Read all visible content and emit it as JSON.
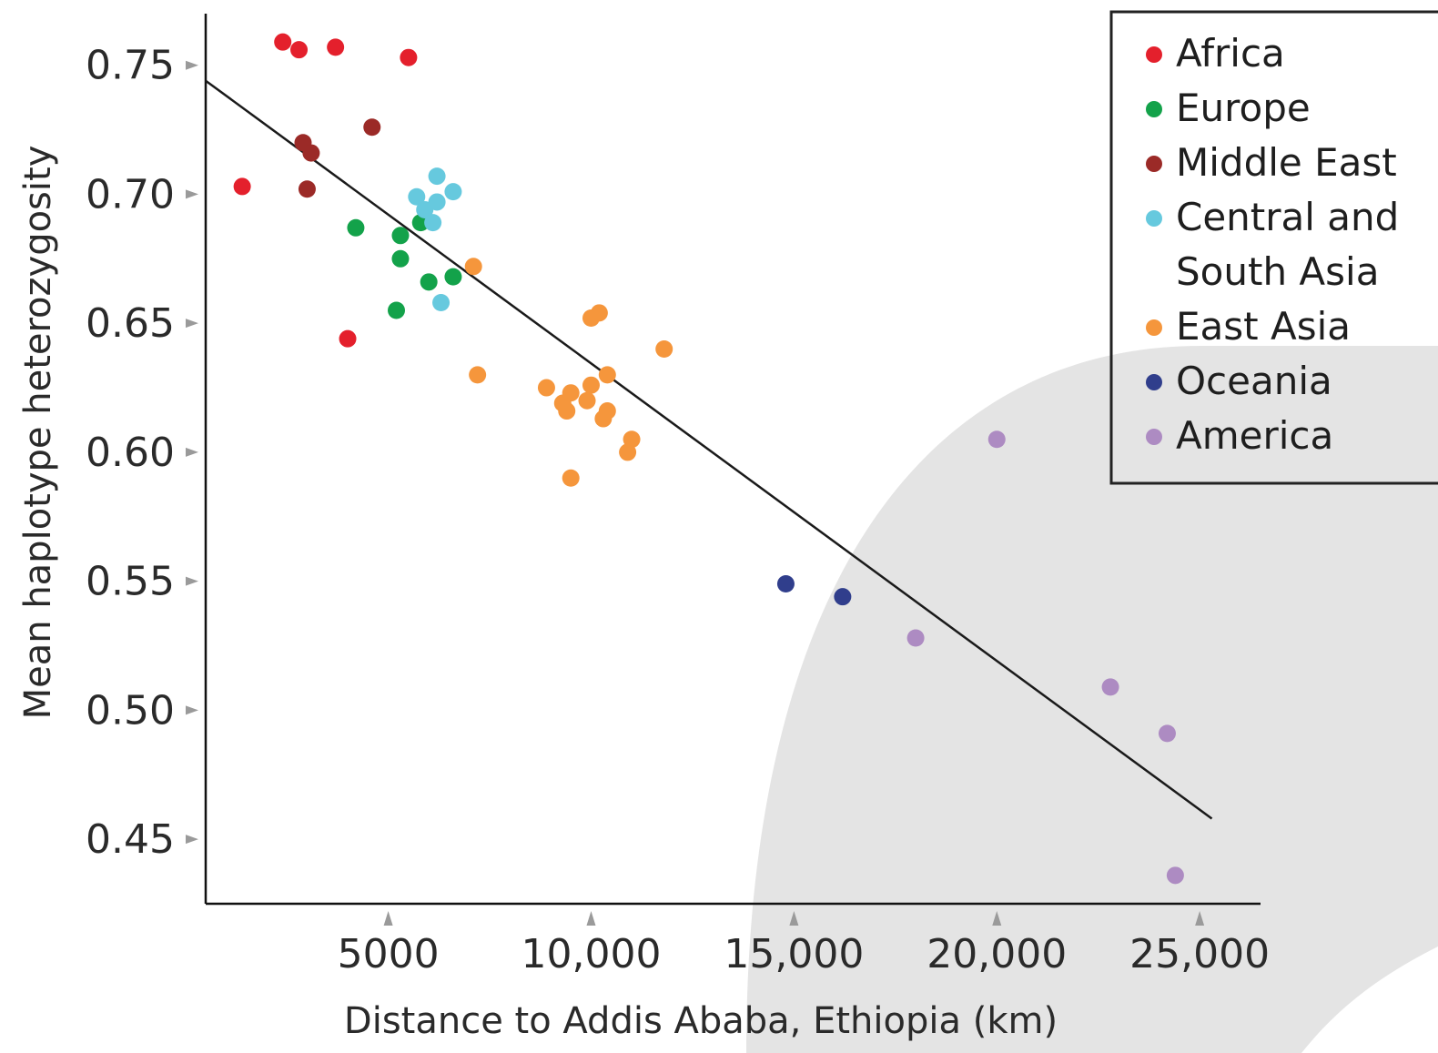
{
  "chart_data": {
    "type": "scatter",
    "title": "",
    "xlabel": "Distance to Addis Ababa, Ethiopia (km)",
    "ylabel": "Mean haplotype heterozygosity",
    "xlim": [
      500,
      26500
    ],
    "ylim": [
      0.425,
      0.77
    ],
    "xticks": [
      5000,
      10000,
      15000,
      20000,
      25000
    ],
    "xtick_labels": [
      "5000",
      "10,000",
      "15,000",
      "20,000",
      "25,000"
    ],
    "yticks": [
      0.75,
      0.7,
      0.65,
      0.6,
      0.55,
      0.5,
      0.45
    ],
    "ytick_labels": [
      "0.75",
      "0.70",
      "0.65",
      "0.60",
      "0.55",
      "0.50",
      "0.45"
    ],
    "grid": false,
    "legend_position": "top-right",
    "trendline": {
      "x": [
        500,
        25300
      ],
      "y": [
        0.744,
        0.458
      ]
    },
    "series": [
      {
        "name": "Africa",
        "color": "#e4202c",
        "points": [
          [
            1400,
            0.703
          ],
          [
            2400,
            0.759
          ],
          [
            2800,
            0.756
          ],
          [
            3700,
            0.757
          ],
          [
            4000,
            0.644
          ],
          [
            5500,
            0.753
          ]
        ]
      },
      {
        "name": "Europe",
        "color": "#13a24a",
        "points": [
          [
            4200,
            0.687
          ],
          [
            5200,
            0.655
          ],
          [
            5300,
            0.684
          ],
          [
            5300,
            0.675
          ],
          [
            5800,
            0.689
          ],
          [
            6000,
            0.666
          ],
          [
            6600,
            0.668
          ]
        ]
      },
      {
        "name": "Middle East",
        "color": "#9b2a27",
        "points": [
          [
            2900,
            0.72
          ],
          [
            3100,
            0.716
          ],
          [
            3000,
            0.702
          ],
          [
            4600,
            0.726
          ]
        ]
      },
      {
        "name": "Central and\nSouth Asia",
        "color": "#66c9de",
        "points": [
          [
            5700,
            0.699
          ],
          [
            5900,
            0.694
          ],
          [
            6100,
            0.689
          ],
          [
            6200,
            0.707
          ],
          [
            6200,
            0.697
          ],
          [
            6300,
            0.658
          ],
          [
            6600,
            0.701
          ]
        ]
      },
      {
        "name": "East Asia",
        "color": "#f5963c",
        "points": [
          [
            7100,
            0.672
          ],
          [
            7200,
            0.63
          ],
          [
            8900,
            0.625
          ],
          [
            9300,
            0.619
          ],
          [
            9400,
            0.616
          ],
          [
            9500,
            0.623
          ],
          [
            9500,
            0.59
          ],
          [
            9900,
            0.62
          ],
          [
            10000,
            0.626
          ],
          [
            10000,
            0.652
          ],
          [
            10200,
            0.654
          ],
          [
            10300,
            0.613
          ],
          [
            10400,
            0.616
          ],
          [
            10400,
            0.63
          ],
          [
            10900,
            0.6
          ],
          [
            11000,
            0.605
          ],
          [
            11800,
            0.64
          ]
        ]
      },
      {
        "name": "Oceania",
        "color": "#303e8c",
        "points": [
          [
            14800,
            0.549
          ],
          [
            16200,
            0.544
          ]
        ]
      },
      {
        "name": "America",
        "color": "#ad8bc2",
        "points": [
          [
            18000,
            0.528
          ],
          [
            20000,
            0.605
          ],
          [
            22800,
            0.509
          ],
          [
            24200,
            0.491
          ],
          [
            24400,
            0.436
          ]
        ]
      }
    ]
  }
}
